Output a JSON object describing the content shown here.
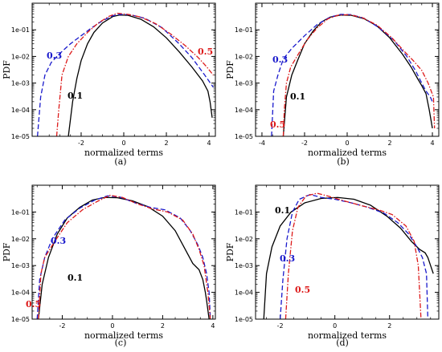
{
  "chart_data": [
    {
      "type": "line",
      "panel": "(a)",
      "caption": "(a)",
      "xlabel": "normalized terms",
      "ylabel": "PDF",
      "xlim": [
        -4.3,
        4.3
      ],
      "ylim": [
        1e-05,
        1
      ],
      "yscale": "log",
      "xticks": [
        -2,
        0,
        2,
        4
      ],
      "yticks": [
        "1e-05",
        "1e-04",
        "1e-03",
        "1e-02",
        "1e-01"
      ],
      "series": [
        {
          "name": "0.1",
          "color": "#000000",
          "dash": "solid",
          "x": [
            -2.6,
            -2.4,
            -2.2,
            -2.0,
            -1.7,
            -1.4,
            -1.0,
            -0.5,
            -0.2,
            0.2,
            0.8,
            1.4,
            2.0,
            2.6,
            3.2,
            3.7,
            3.95,
            4.05,
            4.15
          ],
          "y": [
            1e-05,
            0.0002,
            0.0015,
            0.007,
            0.03,
            0.08,
            0.18,
            0.32,
            0.36,
            0.35,
            0.25,
            0.13,
            0.05,
            0.015,
            0.004,
            0.0012,
            0.0005,
            0.0002,
            5e-05
          ]
        },
        {
          "name": "0.3",
          "color": "#1a1acc",
          "dash": "6,3",
          "x": [
            -4.05,
            -3.9,
            -3.7,
            -3.4,
            -3.0,
            -2.5,
            -2.0,
            -1.5,
            -1.0,
            -0.5,
            -0.2,
            0.3,
            1.0,
            1.8,
            2.6,
            3.2,
            3.8,
            4.2
          ],
          "y": [
            1e-05,
            0.0003,
            0.002,
            0.006,
            0.013,
            0.03,
            0.06,
            0.12,
            0.22,
            0.34,
            0.38,
            0.37,
            0.27,
            0.12,
            0.03,
            0.009,
            0.002,
            0.0007
          ]
        },
        {
          "name": "0.5",
          "color": "#dd1a1a",
          "dash": "6,2,1.5,2",
          "x": [
            -3.15,
            -3.05,
            -2.9,
            -2.6,
            -2.2,
            -1.7,
            -1.2,
            -0.7,
            -0.3,
            0.2,
            0.8,
            1.5,
            2.2,
            2.9,
            3.5,
            3.9,
            4.2
          ],
          "y": [
            1e-05,
            0.0001,
            0.002,
            0.01,
            0.03,
            0.08,
            0.18,
            0.32,
            0.42,
            0.38,
            0.3,
            0.17,
            0.07,
            0.025,
            0.009,
            0.004,
            0.002
          ]
        }
      ]
    },
    {
      "type": "line",
      "panel": "(b)",
      "caption": "(b)",
      "xlabel": "normalized terms",
      "ylabel": "PDF",
      "xlim": [
        -4.3,
        4.3
      ],
      "ylim": [
        1e-05,
        1
      ],
      "yscale": "log",
      "xticks": [
        -4,
        -2,
        0,
        2,
        4
      ],
      "yticks": [
        "1e-05",
        "1e-04",
        "1e-03",
        "1e-02",
        "1e-01"
      ],
      "series": [
        {
          "name": "0.1",
          "color": "#000000",
          "dash": "solid",
          "x": [
            -3.0,
            -2.85,
            -2.6,
            -2.3,
            -2.0,
            -1.6,
            -1.2,
            -0.8,
            -0.3,
            0.2,
            0.8,
            1.4,
            2.0,
            2.6,
            3.0,
            3.3,
            3.5,
            3.7,
            3.85,
            4.0
          ],
          "y": [
            1e-05,
            0.0003,
            0.002,
            0.008,
            0.03,
            0.09,
            0.2,
            0.3,
            0.36,
            0.35,
            0.26,
            0.14,
            0.05,
            0.012,
            0.004,
            0.0015,
            0.0008,
            0.0004,
            0.0001,
            2e-05
          ]
        },
        {
          "name": "0.3",
          "color": "#1a1acc",
          "dash": "6,3",
          "x": [
            -3.55,
            -3.45,
            -3.25,
            -3.0,
            -2.6,
            -2.0,
            -1.4,
            -0.8,
            -0.3,
            0.2,
            0.8,
            1.5,
            2.2,
            2.8,
            3.2,
            3.5,
            3.7,
            3.9,
            4.0
          ],
          "y": [
            1e-05,
            0.0005,
            0.002,
            0.008,
            0.02,
            0.06,
            0.16,
            0.3,
            0.38,
            0.37,
            0.27,
            0.12,
            0.04,
            0.01,
            0.003,
            0.001,
            0.0005,
            0.0003,
            0.0002
          ]
        },
        {
          "name": "0.5",
          "color": "#dd1a1a",
          "dash": "6,2,1.5,2",
          "x": [
            -3.0,
            -2.95,
            -2.85,
            -2.65,
            -2.3,
            -1.9,
            -1.4,
            -0.9,
            -0.4,
            0.1,
            0.7,
            1.4,
            2.1,
            2.7,
            3.1,
            3.5,
            3.8,
            4.05,
            4.1
          ],
          "y": [
            1e-05,
            0.0001,
            0.001,
            0.004,
            0.012,
            0.04,
            0.12,
            0.26,
            0.36,
            0.37,
            0.29,
            0.15,
            0.05,
            0.015,
            0.007,
            0.003,
            0.001,
            0.0003,
            2e-05
          ]
        }
      ]
    },
    {
      "type": "line",
      "panel": "(c)",
      "caption": "(c)",
      "xlabel": "normalized terms",
      "ylabel": "PDF",
      "xlim": [
        -3.2,
        4.1
      ],
      "ylim": [
        1e-05,
        1
      ],
      "yscale": "log",
      "xticks": [
        -2,
        0,
        2,
        4
      ],
      "yticks": [
        "1e-05",
        "1e-04",
        "1e-03",
        "1e-02",
        "1e-01"
      ],
      "series": [
        {
          "name": "0.1",
          "color": "#000000",
          "dash": "solid",
          "x": [
            -2.95,
            -2.8,
            -2.55,
            -2.2,
            -1.8,
            -1.3,
            -0.8,
            -0.3,
            0.2,
            0.8,
            1.4,
            2.0,
            2.5,
            2.9,
            3.2,
            3.45,
            3.6,
            3.7,
            3.75,
            3.85
          ],
          "y": [
            1e-05,
            0.0002,
            0.002,
            0.015,
            0.06,
            0.15,
            0.28,
            0.35,
            0.34,
            0.26,
            0.16,
            0.07,
            0.02,
            0.004,
            0.0012,
            0.0007,
            0.0003,
            0.0001,
            5e-05,
            1e-05
          ]
        },
        {
          "name": "0.3",
          "color": "#1a1acc",
          "dash": "6,3",
          "x": [
            -3.0,
            -2.9,
            -2.7,
            -2.4,
            -1.9,
            -1.3,
            -0.7,
            -0.2,
            0.3,
            0.9,
            1.5,
            2.1,
            2.7,
            3.1,
            3.4,
            3.6,
            3.75,
            3.85,
            3.9
          ],
          "y": [
            1e-05,
            0.0003,
            0.002,
            0.01,
            0.05,
            0.14,
            0.28,
            0.4,
            0.36,
            0.22,
            0.15,
            0.12,
            0.06,
            0.02,
            0.006,
            0.002,
            0.0005,
            0.0001,
            1e-05
          ]
        },
        {
          "name": "0.5",
          "color": "#dd1a1a",
          "dash": "6,2,1.5,2",
          "x": [
            -2.95,
            -2.85,
            -2.7,
            -2.3,
            -1.8,
            -1.2,
            -0.6,
            -0.1,
            0.4,
            1.0,
            1.6,
            2.2,
            2.8,
            3.2,
            3.45,
            3.65,
            3.8,
            3.9
          ],
          "y": [
            1e-05,
            0.0005,
            0.002,
            0.008,
            0.04,
            0.12,
            0.25,
            0.42,
            0.35,
            0.2,
            0.13,
            0.1,
            0.05,
            0.015,
            0.004,
            0.001,
            0.0001,
            1e-05
          ]
        }
      ]
    },
    {
      "type": "line",
      "panel": "(d)",
      "caption": "(d)",
      "xlabel": "normalized terms",
      "ylabel": "PDF",
      "xlim": [
        -2.9,
        3.8
      ],
      "ylim": [
        1e-05,
        1
      ],
      "yscale": "log",
      "xticks": [
        -2,
        0,
        2
      ],
      "yticks": [
        "1e-05",
        "1e-04",
        "1e-03",
        "1e-02",
        "1e-01"
      ],
      "series": [
        {
          "name": "0.1",
          "color": "#000000",
          "dash": "solid",
          "x": [
            -2.6,
            -2.5,
            -2.3,
            -2.0,
            -1.6,
            -1.1,
            -0.5,
            0.1,
            0.7,
            1.3,
            1.9,
            2.4,
            2.8,
            3.1,
            3.3,
            3.4,
            3.5,
            3.6
          ],
          "y": [
            1e-05,
            0.0005,
            0.005,
            0.03,
            0.1,
            0.22,
            0.32,
            0.35,
            0.3,
            0.18,
            0.07,
            0.025,
            0.008,
            0.004,
            0.003,
            0.002,
            0.001,
            0.0005
          ]
        },
        {
          "name": "0.3",
          "color": "#1a1acc",
          "dash": "6,3",
          "x": [
            -2.0,
            -1.9,
            -1.75,
            -1.55,
            -1.3,
            -0.9,
            -0.5,
            0.0,
            0.6,
            1.2,
            1.8,
            2.3,
            2.7,
            3.0,
            3.2,
            3.35,
            3.4
          ],
          "y": [
            1e-05,
            0.0003,
            0.01,
            0.1,
            0.3,
            0.45,
            0.35,
            0.3,
            0.22,
            0.15,
            0.09,
            0.04,
            0.015,
            0.005,
            0.002,
            0.0005,
            1e-05
          ]
        },
        {
          "name": "0.5",
          "color": "#dd1a1a",
          "dash": "6,2,1.5,2",
          "x": [
            -1.8,
            -1.7,
            -1.55,
            -1.35,
            -1.05,
            -0.65,
            -0.2,
            0.4,
            1.0,
            1.6,
            2.1,
            2.6,
            2.9,
            3.05,
            3.15
          ],
          "y": [
            1e-05,
            0.0005,
            0.02,
            0.15,
            0.4,
            0.5,
            0.38,
            0.25,
            0.17,
            0.12,
            0.08,
            0.03,
            0.008,
            0.001,
            1e-05
          ]
        }
      ]
    }
  ],
  "annotations": [
    [
      {
        "text": "0.3",
        "color": "#1a1acc"
      },
      {
        "text": "0.1",
        "color": "#000000"
      },
      {
        "text": "0.5",
        "color": "#dd1a1a"
      }
    ],
    [
      {
        "text": "0.3",
        "color": "#1a1acc"
      },
      {
        "text": "0.1",
        "color": "#000000"
      },
      {
        "text": "0.5",
        "color": "#dd1a1a"
      }
    ],
    [
      {
        "text": "0.3",
        "color": "#1a1acc"
      },
      {
        "text": "0.1",
        "color": "#000000"
      },
      {
        "text": "0.5",
        "color": "#dd1a1a"
      }
    ],
    [
      {
        "text": "0.1",
        "color": "#000000"
      },
      {
        "text": "0.3",
        "color": "#1a1acc"
      },
      {
        "text": "0.5",
        "color": "#dd1a1a"
      }
    ]
  ]
}
